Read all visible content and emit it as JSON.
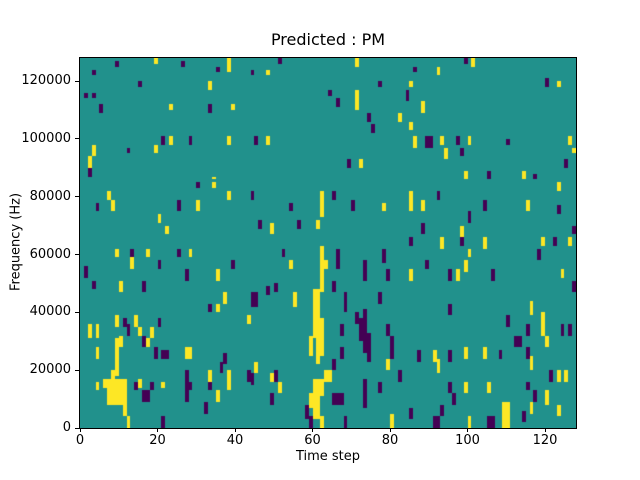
{
  "chart_data": {
    "type": "heatmap",
    "title": "Predicted : PM",
    "xlabel": "Time step",
    "ylabel": "Frequency (Hz)",
    "x_range": [
      0,
      128
    ],
    "y_range_hz": [
      0,
      128000
    ],
    "grid_size": [
      128,
      128
    ],
    "hz_per_bin": 1000,
    "x_ticks": [
      0,
      20,
      40,
      60,
      80,
      100,
      120
    ],
    "x_tick_labels": [
      "0",
      "20",
      "40",
      "60",
      "80",
      "100",
      "120"
    ],
    "y_ticks_hz": [
      0,
      20000,
      40000,
      60000,
      80000,
      100000,
      120000
    ],
    "y_tick_labels": [
      "0",
      "20000",
      "40000",
      "60000",
      "80000",
      "100000",
      "120000"
    ],
    "legend": "none",
    "grid": false,
    "colors": {
      "background_mid": "#21918c",
      "high_yellow": "#fde725",
      "low_purple": "#440154",
      "spine": "#000000"
    },
    "high_runs": [
      [
        19,
        126,
        127
      ],
      [
        38,
        123,
        127
      ],
      [
        33,
        117,
        119
      ],
      [
        23,
        110,
        111
      ],
      [
        39,
        110,
        111
      ],
      [
        23,
        98,
        100
      ],
      [
        38,
        98,
        100
      ],
      [
        19,
        95,
        97
      ],
      [
        3,
        94,
        97
      ],
      [
        2,
        90,
        93
      ],
      [
        34,
        86,
        86
      ],
      [
        71,
        125,
        127
      ],
      [
        48,
        122,
        123
      ],
      [
        85,
        118,
        119
      ],
      [
        71,
        110,
        116
      ],
      [
        82,
        106,
        108
      ],
      [
        48,
        98,
        100
      ],
      [
        72,
        90,
        92
      ],
      [
        101,
        125,
        127
      ],
      [
        92,
        122,
        124
      ],
      [
        123,
        118,
        119
      ],
      [
        88,
        109,
        112
      ],
      [
        85,
        103,
        105
      ],
      [
        86,
        97,
        100
      ],
      [
        93,
        98,
        100
      ],
      [
        100,
        98,
        100
      ],
      [
        126,
        98,
        100
      ],
      [
        127,
        95,
        96
      ],
      [
        94,
        93,
        96
      ],
      [
        99,
        86,
        88
      ],
      [
        114,
        86,
        88
      ],
      [
        34,
        83,
        84
      ],
      [
        7,
        79,
        81
      ],
      [
        8,
        75,
        78
      ],
      [
        38,
        79,
        81
      ],
      [
        30,
        75,
        78
      ],
      [
        20,
        71,
        73
      ],
      [
        22,
        67,
        69
      ],
      [
        9,
        59,
        61
      ],
      [
        17,
        59,
        61
      ],
      [
        28,
        59,
        61
      ],
      [
        13,
        55,
        58
      ],
      [
        35,
        51,
        54
      ],
      [
        10,
        47,
        50
      ],
      [
        37,
        43,
        46
      ],
      [
        62,
        73,
        81
      ],
      [
        78,
        75,
        77
      ],
      [
        85,
        75,
        81
      ],
      [
        49,
        67,
        70
      ],
      [
        61,
        69,
        71
      ],
      [
        54,
        55,
        57
      ],
      [
        62,
        47,
        62
      ],
      [
        63,
        55,
        57
      ],
      [
        55,
        42,
        46
      ],
      [
        60,
        43,
        47
      ],
      [
        61,
        43,
        47
      ],
      [
        85,
        51,
        54
      ],
      [
        123,
        82,
        84
      ],
      [
        88,
        75,
        78
      ],
      [
        115,
        75,
        78
      ],
      [
        98,
        66,
        69
      ],
      [
        93,
        62,
        65
      ],
      [
        104,
        62,
        65
      ],
      [
        100,
        59,
        61
      ],
      [
        119,
        63,
        65
      ],
      [
        126,
        63,
        65
      ],
      [
        99,
        54,
        57
      ],
      [
        97,
        51,
        54
      ],
      [
        124,
        52,
        54
      ],
      [
        116,
        42,
        43
      ],
      [
        35,
        40,
        42
      ],
      [
        9,
        35,
        38
      ],
      [
        14,
        35,
        38
      ],
      [
        15,
        32,
        34
      ],
      [
        2,
        31,
        35
      ],
      [
        4,
        31,
        35
      ],
      [
        18,
        31,
        34
      ],
      [
        17,
        28,
        30
      ],
      [
        10,
        28,
        31
      ],
      [
        4,
        24,
        27
      ],
      [
        9,
        18,
        30
      ],
      [
        27,
        24,
        27
      ],
      [
        28,
        24,
        27
      ],
      [
        8,
        16,
        19
      ],
      [
        6,
        14,
        16
      ],
      [
        7,
        8,
        16
      ],
      [
        8,
        8,
        16
      ],
      [
        9,
        8,
        16
      ],
      [
        10,
        8,
        16
      ],
      [
        11,
        8,
        16
      ],
      [
        4,
        13,
        15
      ],
      [
        15,
        14,
        16
      ],
      [
        21,
        14,
        15
      ],
      [
        38,
        13,
        19
      ],
      [
        33,
        16,
        19
      ],
      [
        35,
        9,
        12
      ],
      [
        11,
        4,
        7
      ],
      [
        12,
        0,
        3
      ],
      [
        43,
        36,
        38
      ],
      [
        79,
        20,
        23
      ],
      [
        49,
        16,
        18
      ],
      [
        51,
        12,
        15
      ],
      [
        45,
        19,
        22
      ],
      [
        80,
        0,
        4
      ],
      [
        60,
        31,
        42
      ],
      [
        61,
        22,
        42
      ],
      [
        62,
        25,
        37
      ],
      [
        59,
        25,
        31
      ],
      [
        63,
        16,
        19
      ],
      [
        64,
        16,
        19
      ],
      [
        60,
        7,
        16
      ],
      [
        61,
        7,
        16
      ],
      [
        62,
        11,
        16
      ],
      [
        59,
        7,
        11
      ],
      [
        60,
        3,
        7
      ],
      [
        61,
        3,
        7
      ],
      [
        62,
        0,
        3
      ],
      [
        116,
        39,
        42
      ],
      [
        119,
        32,
        39
      ],
      [
        120,
        28,
        31
      ],
      [
        116,
        20,
        24
      ],
      [
        91,
        23,
        26
      ],
      [
        92,
        19,
        23
      ],
      [
        99,
        24,
        27
      ],
      [
        104,
        24,
        27
      ],
      [
        123,
        16,
        19
      ],
      [
        125,
        16,
        19
      ],
      [
        99,
        12,
        15
      ],
      [
        105,
        12,
        15
      ],
      [
        120,
        8,
        12
      ],
      [
        116,
        5,
        8
      ],
      [
        100,
        0,
        3
      ],
      [
        109,
        0,
        8
      ],
      [
        110,
        0,
        8
      ],
      [
        123,
        4,
        7
      ]
    ],
    "low_runs": [
      [
        3,
        122,
        123
      ],
      [
        9,
        125,
        126
      ],
      [
        26,
        125,
        126
      ],
      [
        35,
        123,
        124
      ],
      [
        15,
        118,
        119
      ],
      [
        1,
        114,
        115
      ],
      [
        3,
        114,
        115
      ],
      [
        5,
        109,
        111
      ],
      [
        33,
        109,
        111
      ],
      [
        21,
        98,
        100
      ],
      [
        28,
        98,
        100
      ],
      [
        12,
        95,
        96
      ],
      [
        2,
        87,
        89
      ],
      [
        51,
        126,
        127
      ],
      [
        44,
        122,
        123
      ],
      [
        77,
        118,
        119
      ],
      [
        64,
        115,
        116
      ],
      [
        84,
        113,
        116
      ],
      [
        66,
        111,
        113
      ],
      [
        74,
        106,
        108
      ],
      [
        75,
        102,
        104
      ],
      [
        45,
        98,
        100
      ],
      [
        69,
        90,
        92
      ],
      [
        99,
        126,
        127
      ],
      [
        86,
        123,
        124
      ],
      [
        120,
        118,
        120
      ],
      [
        89,
        97,
        100
      ],
      [
        90,
        97,
        100
      ],
      [
        97,
        98,
        100
      ],
      [
        110,
        98,
        99
      ],
      [
        98,
        94,
        96
      ],
      [
        125,
        90,
        92
      ],
      [
        105,
        86,
        88
      ],
      [
        117,
        86,
        87
      ],
      [
        30,
        83,
        84
      ],
      [
        4,
        75,
        77
      ],
      [
        25,
        75,
        78
      ],
      [
        13,
        59,
        61
      ],
      [
        25,
        59,
        61
      ],
      [
        20,
        55,
        57
      ],
      [
        1,
        52,
        55
      ],
      [
        27,
        51,
        54
      ],
      [
        39,
        55,
        57
      ],
      [
        3,
        48,
        50
      ],
      [
        16,
        47,
        50
      ],
      [
        44,
        79,
        81
      ],
      [
        54,
        75,
        77
      ],
      [
        65,
        79,
        81
      ],
      [
        70,
        75,
        78
      ],
      [
        46,
        69,
        71
      ],
      [
        56,
        69,
        71
      ],
      [
        52,
        59,
        61
      ],
      [
        66,
        55,
        61
      ],
      [
        73,
        51,
        57
      ],
      [
        78,
        57,
        61
      ],
      [
        79,
        51,
        54
      ],
      [
        50,
        47,
        49
      ],
      [
        48,
        46,
        48
      ],
      [
        65,
        47,
        50
      ],
      [
        68,
        42,
        46
      ],
      [
        44,
        42,
        46
      ],
      [
        45,
        42,
        46
      ],
      [
        77,
        43,
        46
      ],
      [
        92,
        79,
        81
      ],
      [
        104,
        75,
        78
      ],
      [
        123,
        74,
        76
      ],
      [
        127,
        67,
        69
      ],
      [
        100,
        71,
        74
      ],
      [
        88,
        67,
        70
      ],
      [
        98,
        63,
        65
      ],
      [
        85,
        63,
        65
      ],
      [
        118,
        58,
        61
      ],
      [
        122,
        63,
        65
      ],
      [
        89,
        55,
        57
      ],
      [
        95,
        51,
        54
      ],
      [
        106,
        51,
        54
      ],
      [
        127,
        47,
        50
      ],
      [
        33,
        40,
        42
      ],
      [
        11,
        35,
        37
      ],
      [
        12,
        32,
        35
      ],
      [
        20,
        35,
        37
      ],
      [
        16,
        28,
        31
      ],
      [
        19,
        24,
        27
      ],
      [
        21,
        24,
        26
      ],
      [
        22,
        24,
        26
      ],
      [
        37,
        22,
        25
      ],
      [
        36,
        19,
        22
      ],
      [
        14,
        13,
        15
      ],
      [
        16,
        9,
        12
      ],
      [
        17,
        9,
        12
      ],
      [
        18,
        13,
        15
      ],
      [
        27,
        9,
        19
      ],
      [
        28,
        13,
        15
      ],
      [
        33,
        13,
        15
      ],
      [
        32,
        5,
        8
      ],
      [
        21,
        0,
        3
      ],
      [
        68,
        40,
        42
      ],
      [
        71,
        36,
        39
      ],
      [
        73,
        26,
        40
      ],
      [
        72,
        30,
        37
      ],
      [
        67,
        32,
        35
      ],
      [
        79,
        32,
        35
      ],
      [
        80,
        28,
        31
      ],
      [
        67,
        24,
        27
      ],
      [
        65,
        20,
        23
      ],
      [
        74,
        23,
        32
      ],
      [
        80,
        24,
        27
      ],
      [
        82,
        16,
        19
      ],
      [
        73,
        7,
        16
      ],
      [
        77,
        12,
        15
      ],
      [
        65,
        8,
        11
      ],
      [
        66,
        8,
        11
      ],
      [
        67,
        8,
        11
      ],
      [
        68,
        0,
        3
      ],
      [
        58,
        3,
        7
      ],
      [
        59,
        0,
        3
      ],
      [
        50,
        16,
        19
      ],
      [
        49,
        8,
        11
      ],
      [
        43,
        16,
        19
      ],
      [
        44,
        15,
        18
      ],
      [
        95,
        39,
        42
      ],
      [
        110,
        35,
        38
      ],
      [
        115,
        32,
        35
      ],
      [
        124,
        32,
        35
      ],
      [
        126,
        32,
        35
      ],
      [
        112,
        28,
        31
      ],
      [
        113,
        28,
        31
      ],
      [
        115,
        24,
        27
      ],
      [
        87,
        23,
        26
      ],
      [
        95,
        23,
        26
      ],
      [
        108,
        24,
        26
      ],
      [
        121,
        16,
        19
      ],
      [
        95,
        12,
        15
      ],
      [
        115,
        13,
        15
      ],
      [
        96,
        8,
        11
      ],
      [
        117,
        9,
        12
      ],
      [
        93,
        4,
        7
      ],
      [
        85,
        3,
        6
      ],
      [
        91,
        0,
        3
      ],
      [
        92,
        0,
        3
      ],
      [
        105,
        0,
        3
      ],
      [
        106,
        0,
        3
      ],
      [
        114,
        2,
        5
      ]
    ]
  }
}
